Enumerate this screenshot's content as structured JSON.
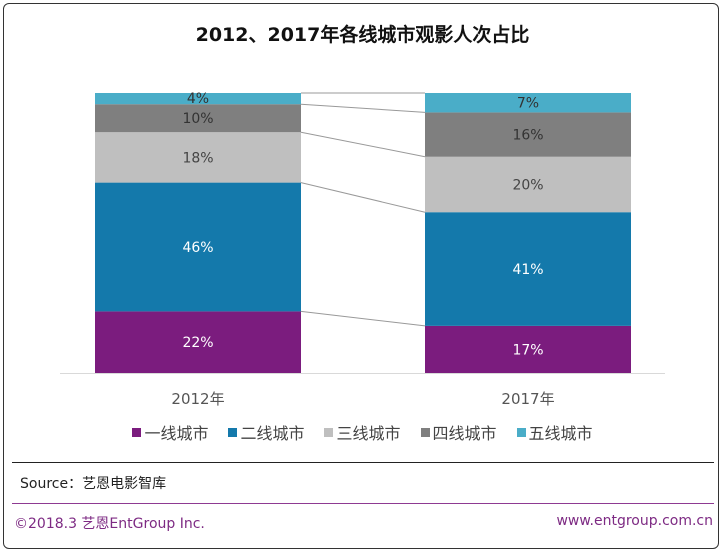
{
  "chart_data": {
    "type": "bar",
    "stacked": true,
    "percent": true,
    "title": "2012、2017年各线城市观影人次占比",
    "categories": [
      "2012年",
      "2017年"
    ],
    "series": [
      {
        "name": "一线城市",
        "color": "#7b1c7e",
        "values": [
          22,
          17
        ],
        "label_color": "#ffffff"
      },
      {
        "name": "二线城市",
        "color": "#1479ab",
        "values": [
          46,
          41
        ],
        "label_color": "#ffffff"
      },
      {
        "name": "三线城市",
        "color": "#bfbfbf",
        "values": [
          18,
          20
        ],
        "label_color": "#444444"
      },
      {
        "name": "四线城市",
        "color": "#7f7f7f",
        "values": [
          10,
          16
        ],
        "label_color": "#333333"
      },
      {
        "name": "五线城市",
        "color": "#4aadc8",
        "values": [
          4,
          7
        ],
        "label_color": "#333333"
      }
    ],
    "legend": "bottom",
    "grid": false
  },
  "footer": {
    "source": "Source：艺恩电影智库",
    "copyright": "©2018.3  艺恩EntGroup Inc.",
    "url": "www.entgroup.com.cn"
  }
}
